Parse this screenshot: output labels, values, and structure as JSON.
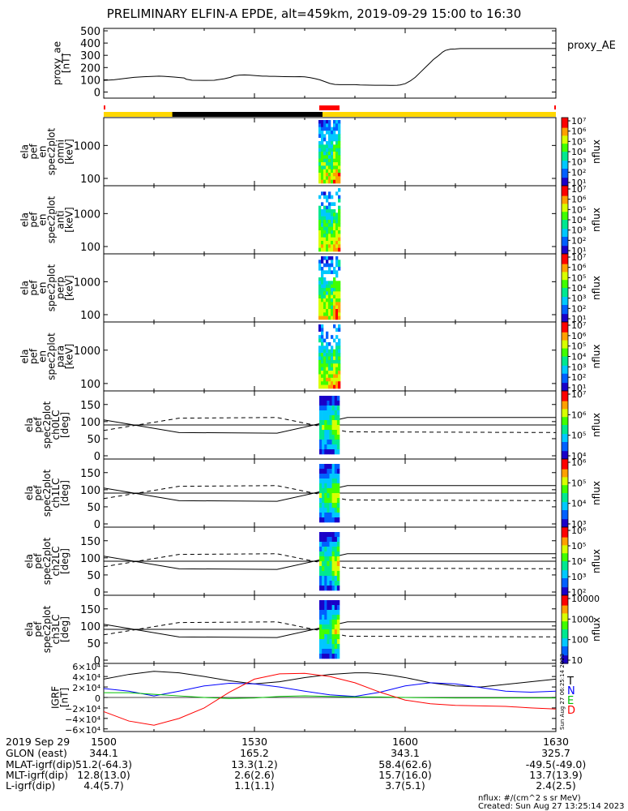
{
  "title": "PRELIMINARY ELFIN-A EPDE, alt=459km, 2019-09-29 15:00 to 16:30",
  "colors": {
    "orbit_sun": "#ffd700",
    "orbit_shadow": "#000000",
    "science_zone": "#ff0000",
    "T": "#000000",
    "N": "#0000ff",
    "E": "#00c000",
    "D": "#ff0000"
  },
  "orbit_bar": {
    "shadow_start_min": 21,
    "shadow_end_min": 67,
    "science_start_min": 66,
    "science_end_min": 72
  },
  "footer": {
    "row_labels": [
      "2019 Sep 29",
      "GLON (east)",
      "MLAT-igrf(dip)",
      "MLT-igrf(dip)",
      "L-igrf(dip)"
    ],
    "columns": [
      {
        "time": "1500",
        "glon": "344.1",
        "mlat": "51.2(-64.3)",
        "mlt": "12.8(13.0)",
        "l": "4.4(5.7)"
      },
      {
        "time": "1530",
        "glon": "165.2",
        "mlat": "13.3(1.2)",
        "mlt": "2.6(2.6)",
        "l": "1.1(1.1)"
      },
      {
        "time": "1600",
        "glon": "343.1",
        "mlat": "58.4(62.6)",
        "mlt": "15.7(16.0)",
        "l": "3.7(5.1)"
      },
      {
        "time": "1630",
        "glon": "325.7",
        "mlat": "-49.5(-49.0)",
        "mlt": "13.7(13.9)",
        "l": "2.4(2.5)"
      }
    ],
    "units_note": "nflux: #/(cm^2 s sr MeV)",
    "created": "Created: Sun Aug 27 13:25:14 2023",
    "side_stamp": "Sun Aug 27 06:25:14 2023"
  },
  "chart_data": [
    {
      "type": "line",
      "ylabel": "proxy_ae\n[nT]",
      "legend": "proxy_AE",
      "ylim": [
        -50,
        520
      ],
      "yticks": [
        "500",
        "400",
        "300",
        "200",
        "100",
        "0"
      ],
      "x_minutes": [
        0,
        10,
        20,
        30,
        40,
        50,
        55,
        60,
        70,
        80,
        82,
        88,
        100,
        110,
        113,
        120,
        126,
        130,
        135,
        140,
        145,
        150,
        158,
        162,
        165,
        170,
        180,
        190,
        195,
        200,
        205,
        210,
        215,
        220,
        225,
        230,
        235,
        240,
        245,
        250,
        255,
        260,
        265,
        270,
        275,
        280,
        285,
        288,
        292,
        295,
        300,
        305,
        310,
        315,
        320,
        325,
        328,
        332,
        335,
        337,
        340,
        345,
        350,
        355,
        360,
        365,
        370,
        375,
        380,
        385,
        390,
        395,
        400,
        405,
        410,
        415,
        420,
        425,
        430,
        435,
        440,
        445,
        450
      ],
      "y": [
        95,
        100,
        110,
        120,
        125,
        128,
        130,
        128,
        122,
        115,
        105,
        96,
        95,
        96,
        100,
        108,
        120,
        132,
        138,
        140,
        138,
        135,
        130,
        130,
        128,
        128,
        126,
        125,
        126,
        124,
        118,
        110,
        100,
        85,
        70,
        62,
        60,
        60,
        60,
        60,
        58,
        57,
        56,
        55,
        55,
        55,
        54,
        54,
        55,
        58,
        68,
        90,
        120,
        160,
        200,
        240,
        265,
        290,
        310,
        325,
        340,
        350,
        352,
        355,
        0,
        0,
        0,
        0,
        0,
        0,
        0,
        0,
        0,
        0,
        0,
        0,
        0,
        0,
        0,
        0,
        0,
        0,
        0
      ]
    },
    {
      "type": "heatmap",
      "ylabel": "ela\npef\nen\nspec2plot\nomni\n[keV]",
      "yticks": [
        "1000",
        "100"
      ],
      "colorbar_label": "nflux",
      "colorbar_ticks": [
        "10⁷",
        "10⁶",
        "10⁵",
        "10⁴",
        "10³",
        "10²",
        "10¹"
      ],
      "extent_minutes": [
        66,
        72
      ]
    },
    {
      "type": "heatmap",
      "ylabel": "ela\npef\nen\nspec2plot\nanti\n[keV]",
      "yticks": [
        "1000",
        "100"
      ],
      "colorbar_label": "nflux",
      "colorbar_ticks": [
        "10⁷",
        "10⁶",
        "10⁵",
        "10⁴",
        "10³",
        "10²",
        "10¹"
      ],
      "extent_minutes": [
        66,
        72
      ]
    },
    {
      "type": "heatmap",
      "ylabel": "ela\npef\nen\nspec2plot\nperp\n[keV]",
      "yticks": [
        "1000",
        "100"
      ],
      "colorbar_label": "nflux",
      "colorbar_ticks": [
        "10⁷",
        "10⁶",
        "10⁵",
        "10⁴",
        "10³",
        "10²",
        "10¹"
      ],
      "extent_minutes": [
        66,
        72
      ]
    },
    {
      "type": "heatmap",
      "ylabel": "ela\npef\nen\nspec2plot\npara\n[keV]",
      "yticks": [
        "1000",
        "100"
      ],
      "colorbar_label": "nflux",
      "colorbar_ticks": [
        "10⁷",
        "10⁶",
        "10⁵",
        "10⁴",
        "10³",
        "10²",
        "10¹"
      ],
      "extent_minutes": [
        66,
        72
      ]
    },
    {
      "type": "heatmap",
      "ylabel": "ela\npef\nspec2plot\nch0LC\n[deg]",
      "yticks": [
        "150",
        "100",
        "50",
        "0"
      ],
      "colorbar_label": "nflux",
      "colorbar_ticks": [
        "10⁷",
        "10⁶",
        "10⁵",
        "10⁴"
      ],
      "extent_minutes": [
        66,
        72
      ]
    },
    {
      "type": "heatmap",
      "ylabel": "ela\npef\nspec2plot\nch1LC\n[deg]",
      "yticks": [
        "150",
        "100",
        "50",
        "0"
      ],
      "colorbar_label": "nflux",
      "colorbar_ticks": [
        "10⁶",
        "10⁵",
        "10⁴",
        "10³"
      ],
      "extent_minutes": [
        66,
        72
      ]
    },
    {
      "type": "heatmap",
      "ylabel": "ela\npef\nspec2plot\nch2LC\n[deg]",
      "yticks": [
        "150",
        "100",
        "50",
        "0"
      ],
      "colorbar_label": "nflux",
      "colorbar_ticks": [
        "10⁶",
        "10⁵",
        "10⁴",
        "10³",
        "10²"
      ],
      "extent_minutes": [
        66,
        72
      ]
    },
    {
      "type": "heatmap",
      "ylabel": "ela\npef\nspec2plot\nch3LC\n[deg]",
      "yticks": [
        "150",
        "100",
        "50",
        "0"
      ],
      "colorbar_label": "nflux",
      "colorbar_ticks": [
        "10000",
        "1000",
        "100",
        "10"
      ],
      "extent_minutes": [
        66,
        72
      ]
    },
    {
      "type": "line",
      "ylabel": "IGRF\n[nT]",
      "yticks": [
        "6×10⁴",
        "4×10⁴",
        "2×10⁴",
        "0",
        "−2×10⁴",
        "−4×10⁴",
        "−6×10⁴"
      ],
      "ylim": [
        -65000,
        65000
      ],
      "legend": [
        "T",
        "N",
        "E",
        "D"
      ],
      "series": [
        {
          "name": "T",
          "x_minutes": [
            0,
            10,
            20,
            30,
            40,
            50,
            60,
            70,
            80,
            90,
            100,
            105,
            110,
            115,
            120,
            125,
            130,
            140,
            150,
            160,
            170,
            180
          ],
          "y": [
            35000,
            44000,
            50000,
            47000,
            40000,
            32000,
            26000,
            30000,
            38000,
            44000,
            47000,
            47000,
            45000,
            42000,
            38000,
            33000,
            28000,
            22000,
            20000,
            25000,
            30000,
            35000
          ]
        },
        {
          "name": "N",
          "x_minutes": [
            0,
            10,
            20,
            30,
            40,
            50,
            60,
            70,
            80,
            90,
            100,
            110,
            120,
            130,
            140,
            150,
            160,
            170,
            180
          ],
          "y": [
            17000,
            12000,
            3000,
            12000,
            22000,
            27000,
            26000,
            20000,
            12000,
            5000,
            2000,
            10000,
            22000,
            28000,
            26000,
            19000,
            12000,
            10000,
            12000
          ]
        },
        {
          "name": "E",
          "x_minutes": [
            0,
            10,
            20,
            30,
            40,
            50,
            60,
            70,
            80,
            90,
            100,
            110,
            120,
            130,
            140,
            150,
            160,
            170,
            180
          ],
          "y": [
            9000,
            9000,
            6000,
            3000,
            0,
            -2000,
            -1000,
            2000,
            3000,
            2000,
            1000,
            1000,
            0,
            -500,
            -1000,
            -1000,
            -1000,
            -1000,
            -1000
          ]
        },
        {
          "name": "D",
          "x_minutes": [
            0,
            10,
            20,
            30,
            40,
            50,
            60,
            70,
            80,
            90,
            100,
            110,
            120,
            130,
            140,
            150,
            160,
            170,
            180
          ],
          "y": [
            -27000,
            -45000,
            -53000,
            -40000,
            -20000,
            10000,
            35000,
            45000,
            46000,
            40000,
            28000,
            10000,
            -5000,
            -12000,
            -15000,
            -16000,
            -17000,
            -20000,
            -22000
          ]
        }
      ]
    }
  ]
}
